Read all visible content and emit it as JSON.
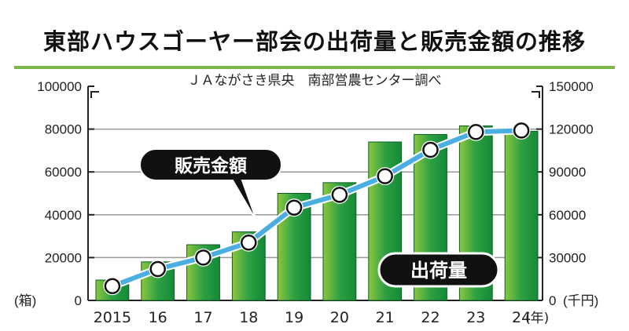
{
  "chart_data": {
    "type": "bar+line",
    "title": "東部ハウスゴーヤー部会の出荷量と販売金額の推移",
    "subtitle": "ＪＡながさき県央　南部営農センター調べ",
    "categories": [
      "2015",
      "16",
      "17",
      "18",
      "19",
      "20",
      "21",
      "22",
      "23",
      "24"
    ],
    "x_unit": "(年)",
    "series": [
      {
        "name": "出荷量",
        "type": "bar",
        "axis": "left",
        "color": "#2ea043",
        "values": [
          9500,
          18000,
          26000,
          32000,
          50000,
          55000,
          74000,
          77500,
          81500,
          79000
        ]
      },
      {
        "name": "販売金額",
        "type": "line",
        "axis": "right",
        "color": "#4aaee0",
        "values": [
          10000,
          22000,
          30000,
          40500,
          65000,
          74000,
          87000,
          105500,
          118000,
          119000
        ]
      }
    ],
    "left_axis": {
      "unit": "(箱)",
      "ylim": [
        0,
        100000
      ],
      "ticks": [
        "0",
        "20000",
        "40000",
        "60000",
        "80000",
        "100000"
      ]
    },
    "right_axis": {
      "unit": "(千円)",
      "ylim": [
        0,
        150000
      ],
      "ticks": [
        "0",
        "30000",
        "60000",
        "90000",
        "120000",
        "150000"
      ]
    },
    "grid": true
  }
}
